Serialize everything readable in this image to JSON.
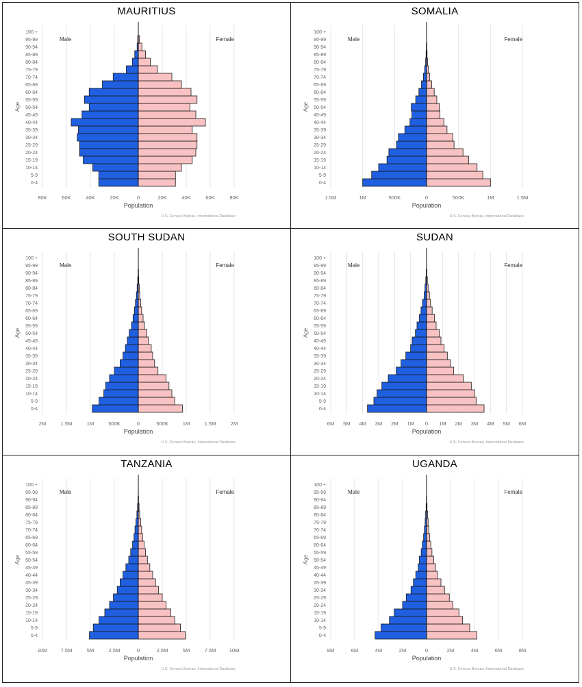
{
  "common": {
    "age_groups": [
      "0-4",
      "5-9",
      "10-14",
      "15-19",
      "20-24",
      "25-29",
      "30-34",
      "35-39",
      "40-44",
      "45-49",
      "50-54",
      "55-59",
      "60-64",
      "65-69",
      "70-74",
      "75-79",
      "80-84",
      "85-89",
      "90-94",
      "95-99",
      "100 +"
    ],
    "male_label": "Male",
    "female_label": "Female",
    "ylabel": "Age",
    "xlabel": "Population",
    "source": "U.S. Census Bureau, International Database",
    "male_color": "#1f5fe0",
    "female_color": "#f8c2c2"
  },
  "chart_data": [
    {
      "type": "bar",
      "title": "MAURITIUS",
      "xlim": [
        -80000,
        80000
      ],
      "ticks": [
        -80000,
        -60000,
        -40000,
        -20000,
        0,
        20000,
        40000,
        60000,
        80000
      ],
      "tick_labels": [
        "80K",
        "60K",
        "40K",
        "20K",
        "0",
        "20K",
        "40K",
        "60K",
        "80K"
      ],
      "male": [
        33000,
        33000,
        38000,
        46000,
        49000,
        49000,
        51000,
        50000,
        56000,
        47000,
        41000,
        45000,
        41000,
        30000,
        21000,
        10000,
        5000,
        3000,
        1000,
        500,
        0
      ],
      "female": [
        31000,
        31000,
        36000,
        45000,
        48000,
        49000,
        49000,
        45000,
        56000,
        48000,
        43000,
        49000,
        44000,
        36000,
        28000,
        16000,
        10000,
        6000,
        3000,
        1000,
        0
      ]
    },
    {
      "type": "bar",
      "title": "SOMALIA",
      "xlim": [
        -1500000,
        1500000
      ],
      "ticks": [
        -1500000,
        -1000000,
        -500000,
        0,
        500000,
        1000000,
        1500000
      ],
      "tick_labels": [
        "1.5M",
        "1M",
        "500K",
        "0",
        "500K",
        "1M",
        "1.5M"
      ],
      "male": [
        1000000,
        860000,
        750000,
        620000,
        590000,
        470000,
        440000,
        340000,
        260000,
        230000,
        240000,
        170000,
        120000,
        80000,
        50000,
        30000,
        15000,
        8000,
        4000,
        1000,
        0
      ],
      "female": [
        1000000,
        880000,
        790000,
        660000,
        570000,
        430000,
        410000,
        320000,
        270000,
        210000,
        200000,
        160000,
        120000,
        80000,
        50000,
        30000,
        15000,
        8000,
        4000,
        1000,
        0
      ]
    },
    {
      "type": "bar",
      "title": "SOUTH SUDAN",
      "xlim": [
        -2000000,
        2000000
      ],
      "ticks": [
        -2000000,
        -1500000,
        -1000000,
        -500000,
        0,
        500000,
        1000000,
        1500000,
        2000000
      ],
      "tick_labels": [
        "2M",
        "1.5M",
        "1M",
        "500K",
        "0",
        "500K",
        "1M",
        "1.5M",
        "2M"
      ],
      "male": [
        960000,
        820000,
        720000,
        680000,
        600000,
        500000,
        380000,
        320000,
        270000,
        230000,
        190000,
        140000,
        110000,
        80000,
        60000,
        40000,
        25000,
        12000,
        5000,
        1000,
        0
      ],
      "female": [
        920000,
        760000,
        700000,
        640000,
        580000,
        410000,
        340000,
        300000,
        270000,
        210000,
        180000,
        130000,
        100000,
        70000,
        50000,
        30000,
        20000,
        10000,
        5000,
        1000,
        0
      ]
    },
    {
      "type": "bar",
      "title": "SUDAN",
      "xlim": [
        -6000000,
        6000000
      ],
      "ticks": [
        -6000000,
        -5000000,
        -4000000,
        -3000000,
        -2000000,
        -1000000,
        0,
        1000000,
        2000000,
        3000000,
        4000000,
        5000000,
        6000000
      ],
      "tick_labels": [
        "6M",
        "5M",
        "4M",
        "3M",
        "2M",
        "1M",
        "0",
        "1M",
        "2M",
        "3M",
        "4M",
        "5M",
        "6M"
      ],
      "male": [
        3700000,
        3300000,
        3100000,
        2800000,
        2400000,
        1900000,
        1600000,
        1300000,
        1000000,
        900000,
        700000,
        600000,
        450000,
        350000,
        250000,
        150000,
        100000,
        50000,
        20000,
        5000,
        0
      ],
      "female": [
        3600000,
        3100000,
        3000000,
        2800000,
        2300000,
        1700000,
        1500000,
        1300000,
        1100000,
        900000,
        800000,
        600000,
        500000,
        350000,
        250000,
        180000,
        100000,
        50000,
        20000,
        5000,
        0
      ]
    },
    {
      "type": "bar",
      "title": "TANZANIA",
      "xlim": [
        -10000000,
        10000000
      ],
      "ticks": [
        -10000000,
        -7500000,
        -5000000,
        -2500000,
        0,
        2500000,
        5000000,
        7500000,
        10000000
      ],
      "tick_labels": [
        "10M",
        "7.5M",
        "5M",
        "2.5M",
        "0",
        "2.5M",
        "5M",
        "7.5M",
        "10M"
      ],
      "male": [
        5100000,
        4700000,
        4100000,
        3500000,
        3000000,
        2600000,
        2200000,
        1900000,
        1600000,
        1300000,
        1000000,
        800000,
        600000,
        450000,
        350000,
        250000,
        150000,
        80000,
        30000,
        8000,
        0
      ],
      "female": [
        4900000,
        4400000,
        3800000,
        3400000,
        2900000,
        2500000,
        2100000,
        1800000,
        1500000,
        1200000,
        950000,
        750000,
        600000,
        450000,
        350000,
        250000,
        150000,
        80000,
        30000,
        8000,
        0
      ]
    },
    {
      "type": "bar",
      "title": "UGANDA",
      "xlim": [
        -8000000,
        8000000
      ],
      "ticks": [
        -8000000,
        -6000000,
        -4000000,
        -2000000,
        0,
        2000000,
        4000000,
        6000000,
        8000000
      ],
      "tick_labels": [
        "8M",
        "6M",
        "4M",
        "2M",
        "0",
        "2M",
        "4M",
        "6M",
        "8M"
      ],
      "male": [
        4300000,
        3800000,
        3100000,
        2700000,
        2000000,
        1700000,
        1300000,
        1100000,
        900000,
        700000,
        600000,
        450000,
        350000,
        250000,
        180000,
        120000,
        80000,
        40000,
        15000,
        4000,
        0
      ],
      "female": [
        4200000,
        3600000,
        3000000,
        2700000,
        2200000,
        1900000,
        1500000,
        1200000,
        900000,
        750000,
        600000,
        450000,
        350000,
        250000,
        180000,
        130000,
        80000,
        40000,
        15000,
        4000,
        0
      ]
    }
  ]
}
